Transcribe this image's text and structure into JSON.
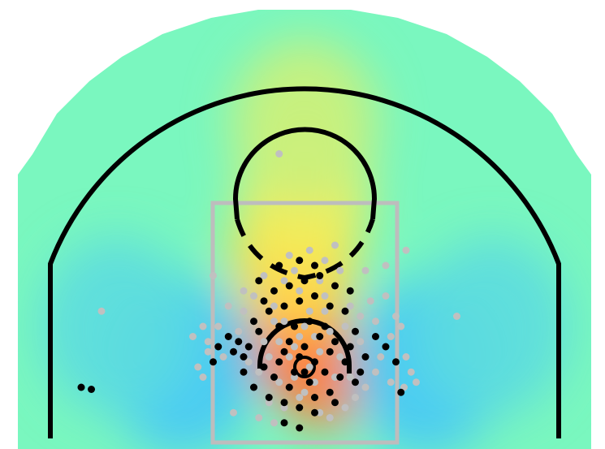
{
  "chart_data": {
    "type": "scatter",
    "title": "",
    "xlabel": "",
    "ylabel": "",
    "grid": false,
    "legend": "none",
    "background": "heatmap",
    "xlim": [
      -250,
      250
    ],
    "ylim": [
      -52,
      310
    ],
    "colors": {
      "made": "#000000",
      "missed": "#c0c0c0",
      "court_lines": "#000000",
      "paint": "#bdbdbd",
      "heat_low": "#3fbfff",
      "heat_mid": "#7af7bf",
      "heat_high": "#ff3a2e"
    },
    "heatmap": [
      {
        "x": 0,
        "y": 10,
        "v": 1.0
      },
      {
        "x": -25,
        "y": 30,
        "v": 0.85
      },
      {
        "x": 20,
        "y": -10,
        "v": 0.8
      },
      {
        "x": 0,
        "y": 60,
        "v": 0.75
      },
      {
        "x": -10,
        "y": 110,
        "v": 0.55
      },
      {
        "x": 0,
        "y": 170,
        "v": 0.45
      },
      {
        "x": 0,
        "y": 240,
        "v": 0.3
      },
      {
        "x": -120,
        "y": 0,
        "v": -0.35
      },
      {
        "x": 120,
        "y": 0,
        "v": -0.35
      },
      {
        "x": -185,
        "y": 40,
        "v": -0.2
      },
      {
        "x": 185,
        "y": 40,
        "v": -0.2
      }
    ],
    "series": [
      {
        "name": "made",
        "points": [
          [
            -220,
            -20
          ],
          [
            -210,
            -22
          ],
          [
            -5,
            -60
          ],
          [
            -20,
            -55
          ],
          [
            10,
            -45
          ],
          [
            -60,
            10
          ],
          [
            -55,
            20
          ],
          [
            -65,
            25
          ],
          [
            -45,
            35
          ],
          [
            -40,
            0
          ],
          [
            -30,
            -10
          ],
          [
            -25,
            5
          ],
          [
            -20,
            15
          ],
          [
            -15,
            25
          ],
          [
            -10,
            -5
          ],
          [
            -5,
            10
          ],
          [
            0,
            20
          ],
          [
            5,
            -15
          ],
          [
            10,
            5
          ],
          [
            15,
            30
          ],
          [
            20,
            -5
          ],
          [
            25,
            15
          ],
          [
            30,
            25
          ],
          [
            35,
            -10
          ],
          [
            40,
            5
          ],
          [
            45,
            20
          ],
          [
            50,
            35
          ],
          [
            55,
            -5
          ],
          [
            60,
            10
          ],
          [
            -50,
            45
          ],
          [
            -35,
            55
          ],
          [
            -20,
            60
          ],
          [
            -5,
            65
          ],
          [
            10,
            70
          ],
          [
            25,
            60
          ],
          [
            40,
            55
          ],
          [
            -30,
            75
          ],
          [
            -15,
            80
          ],
          [
            0,
            85
          ],
          [
            15,
            90
          ],
          [
            30,
            80
          ],
          [
            -45,
            85
          ],
          [
            -25,
            100
          ],
          [
            -5,
            105
          ],
          [
            10,
            100
          ],
          [
            -35,
            -30
          ],
          [
            -20,
            -35
          ],
          [
            -5,
            -40
          ],
          [
            10,
            -30
          ],
          [
            25,
            -25
          ],
          [
            -10,
            40
          ],
          [
            5,
            45
          ],
          [
            20,
            40
          ],
          [
            -40,
            65
          ],
          [
            45,
            75
          ],
          [
            -60,
            -5
          ],
          [
            -70,
            15
          ],
          [
            -75,
            30
          ],
          [
            -85,
            20
          ],
          [
            -90,
            5
          ],
          [
            70,
            30
          ],
          [
            80,
            20
          ],
          [
            90,
            5
          ],
          [
            95,
            -25
          ],
          [
            -50,
            -20
          ],
          [
            -15,
            -20
          ],
          [
            0,
            -5
          ],
          [
            30,
            -35
          ],
          [
            50,
            -15
          ],
          [
            -25,
            40
          ]
        ]
      },
      {
        "name": "missed",
        "points": [
          [
            -90,
            90
          ],
          [
            -25,
            210
          ],
          [
            100,
            115
          ],
          [
            150,
            50
          ],
          [
            -200,
            55
          ],
          [
            -100,
            40
          ],
          [
            -110,
            30
          ],
          [
            -95,
            15
          ],
          [
            -105,
            0
          ],
          [
            -100,
            -10
          ],
          [
            -70,
            -45
          ],
          [
            -45,
            -50
          ],
          [
            -25,
            25
          ],
          [
            -20,
            -40
          ],
          [
            0,
            -25
          ],
          [
            5,
            55
          ],
          [
            -40,
            25
          ],
          [
            -35,
            10
          ],
          [
            -45,
            -5
          ],
          [
            -15,
            10
          ],
          [
            -5,
            30
          ],
          [
            15,
            15
          ],
          [
            25,
            35
          ],
          [
            35,
            10
          ],
          [
            45,
            -10
          ],
          [
            55,
            25
          ],
          [
            60,
            -20
          ],
          [
            70,
            45
          ],
          [
            75,
            10
          ],
          [
            85,
            -15
          ],
          [
            95,
            40
          ],
          [
            100,
            10
          ],
          [
            105,
            -5
          ],
          [
            110,
            -15
          ],
          [
            -20,
            85
          ],
          [
            -10,
            95
          ],
          [
            -15,
            110
          ],
          [
            5,
            115
          ],
          [
            20,
            105
          ],
          [
            35,
            95
          ],
          [
            -50,
            70
          ],
          [
            -60,
            55
          ],
          [
            -30,
            60
          ],
          [
            20,
            70
          ],
          [
            40,
            40
          ],
          [
            55,
            50
          ],
          [
            65,
            65
          ],
          [
            -25,
            -15
          ],
          [
            10,
            -15
          ],
          [
            30,
            -10
          ],
          [
            -5,
            -30
          ],
          [
            15,
            -45
          ],
          [
            40,
            -40
          ],
          [
            -35,
            -35
          ],
          [
            50,
            -30
          ],
          [
            -75,
            60
          ],
          [
            80,
            70
          ],
          [
            90,
            50
          ],
          [
            -85,
            40
          ],
          [
            -55,
            5
          ],
          [
            0,
            40
          ],
          [
            -10,
            20
          ],
          [
            20,
            55
          ],
          [
            -40,
            90
          ],
          [
            30,
            120
          ],
          [
            -5,
            75
          ],
          [
            15,
            85
          ],
          [
            -30,
            45
          ],
          [
            45,
            60
          ],
          [
            60,
            95
          ],
          [
            80,
            100
          ],
          [
            -65,
            35
          ],
          [
            -80,
            10
          ],
          [
            85,
            30
          ],
          [
            -10,
            -10
          ],
          [
            5,
            0
          ],
          [
            -20,
            45
          ],
          [
            10,
            30
          ],
          [
            25,
            -50
          ],
          [
            -30,
            -55
          ],
          [
            -60,
            75
          ],
          [
            70,
            -5
          ],
          [
            -95,
            25
          ],
          [
            98,
            -20
          ]
        ]
      }
    ]
  }
}
